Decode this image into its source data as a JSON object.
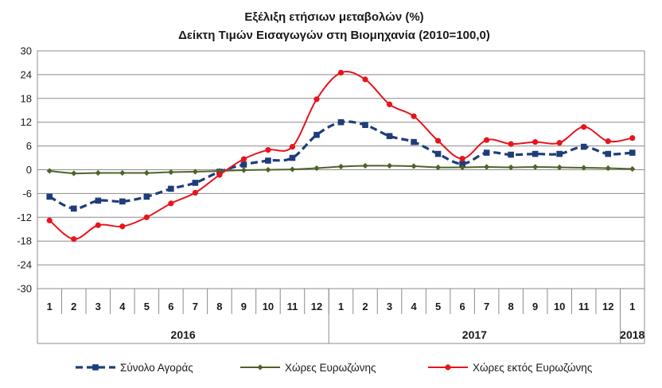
{
  "chart_data": {
    "type": "line",
    "title": [
      "Εξέλιξη ετήσιων μεταβολών (%)",
      "Δείκτη Τιμών Εισαγωγών στη Βιομηχανία (2010=100,0)"
    ],
    "categories": [
      "1",
      "2",
      "3",
      "4",
      "5",
      "6",
      "7",
      "8",
      "9",
      "10",
      "11",
      "12",
      "1",
      "2",
      "3",
      "4",
      "5",
      "6",
      "7",
      "8",
      "9",
      "10",
      "11",
      "12",
      "1"
    ],
    "year_groups": [
      {
        "label": "2016",
        "start": 0,
        "end": 11
      },
      {
        "label": "2017",
        "start": 12,
        "end": 23
      },
      {
        "label": "2018",
        "start": 24,
        "end": 24
      }
    ],
    "ylim": [
      -30,
      30
    ],
    "yticks": [
      "30",
      "24",
      "18",
      "12",
      "6",
      "0",
      "-6",
      "-12",
      "-18",
      "-24",
      "-30"
    ],
    "grid": true,
    "legend_position": "bottom",
    "series": [
      {
        "name": "Σύνολο Αγοράς",
        "color": "#1f3d7a",
        "style": "dashed",
        "marker": "square",
        "values": [
          -6.8,
          -9.8,
          -7.8,
          -8.0,
          -6.8,
          -4.8,
          -3.3,
          -0.5,
          1.3,
          2.3,
          3.0,
          8.8,
          12.0,
          11.3,
          8.5,
          7.0,
          4.0,
          1.5,
          4.3,
          3.8,
          4.0,
          4.0,
          5.8,
          4.0,
          4.3
        ]
      },
      {
        "name": "Χώρες Ευρωζώνης",
        "color": "#4f6228",
        "style": "solid",
        "marker": "diamond",
        "values": [
          -0.3,
          -0.9,
          -0.8,
          -0.8,
          -0.8,
          -0.6,
          -0.5,
          -0.3,
          -0.1,
          0.0,
          0.1,
          0.4,
          0.8,
          1.0,
          1.0,
          0.9,
          0.6,
          0.6,
          0.7,
          0.6,
          0.7,
          0.6,
          0.5,
          0.4,
          0.2
        ]
      },
      {
        "name": "Χώρες εκτός Ευρωζώνης",
        "color": "#e8141c",
        "style": "solid",
        "marker": "circle",
        "values": [
          -12.8,
          -17.5,
          -14.0,
          -14.3,
          -12.0,
          -8.5,
          -5.8,
          -1.3,
          2.7,
          5.0,
          5.8,
          17.8,
          24.5,
          22.8,
          16.5,
          13.5,
          7.3,
          2.8,
          7.5,
          6.5,
          7.0,
          6.8,
          10.8,
          7.2,
          8.0
        ]
      }
    ]
  }
}
